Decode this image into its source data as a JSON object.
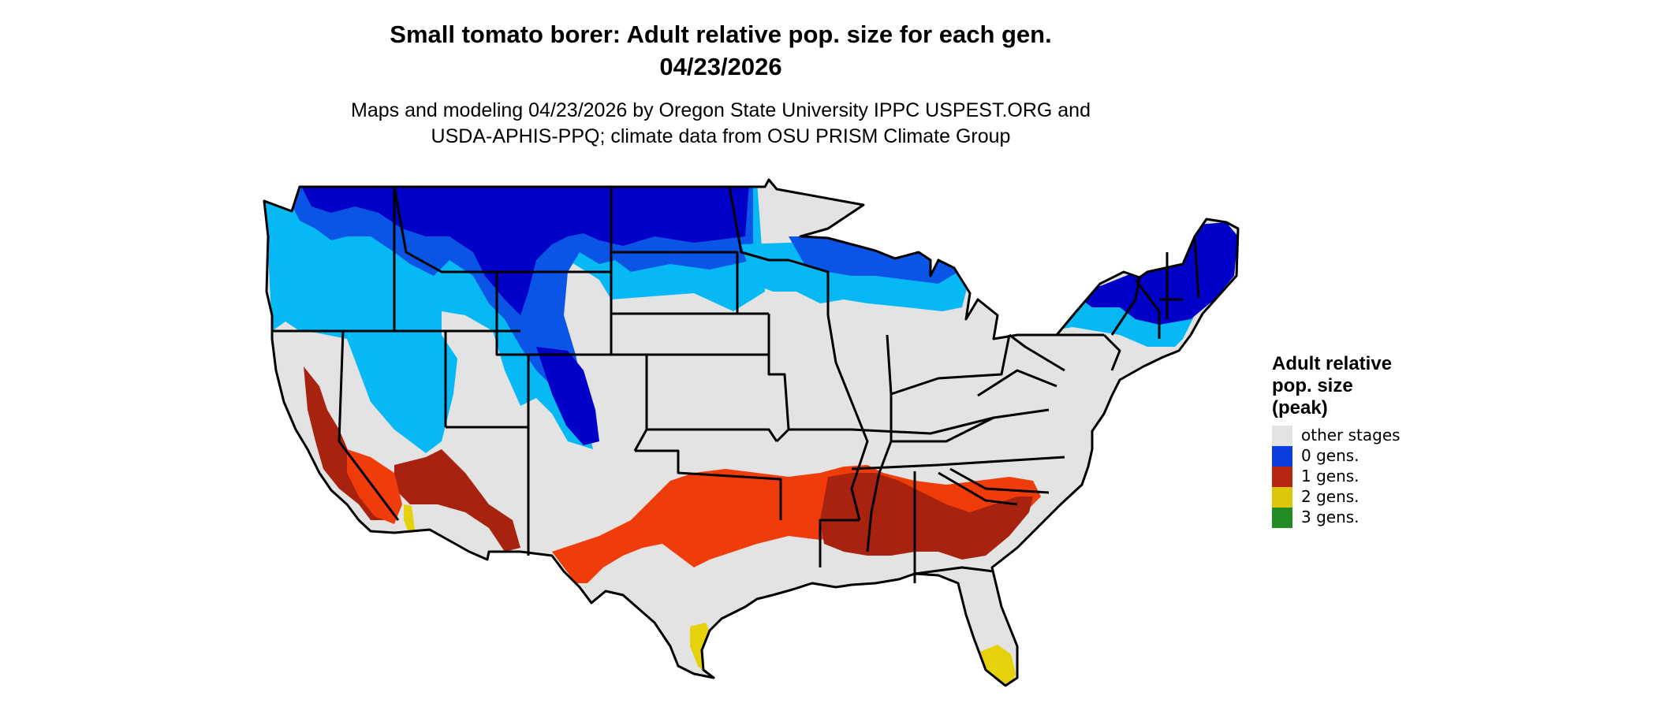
{
  "title_line1": "Small tomato borer: Adult relative pop. size for each gen.",
  "title_line2": "04/23/2026",
  "subtitle_line1": "Maps and modeling 04/23/2026 by Oregon State University IPPC USPEST.ORG and",
  "subtitle_line2": "USDA-APHIS-PPQ; climate data from OSU PRISM Climate Group",
  "legend": {
    "title": "Adult relative\npop. size\n(peak)",
    "items": [
      {
        "label": "other stages",
        "color": "#e3e3e3"
      },
      {
        "label": "0 gens.",
        "color": "#0a3ee0"
      },
      {
        "label": "1 gens.",
        "color": "#b52512"
      },
      {
        "label": "2 gens.",
        "color": "#dcc80a"
      },
      {
        "label": "3 gens.",
        "color": "#238b23"
      }
    ]
  },
  "map_colors": {
    "land": "#e3e3e3",
    "cold_dark": "#0000c8",
    "cold_mid": "#0a55e6",
    "cold_light": "#06b9f5",
    "gen1_dark": "#a8230f",
    "gen1_bright": "#f03c0a",
    "gen2": "#e6d20a",
    "border": "#000000"
  }
}
